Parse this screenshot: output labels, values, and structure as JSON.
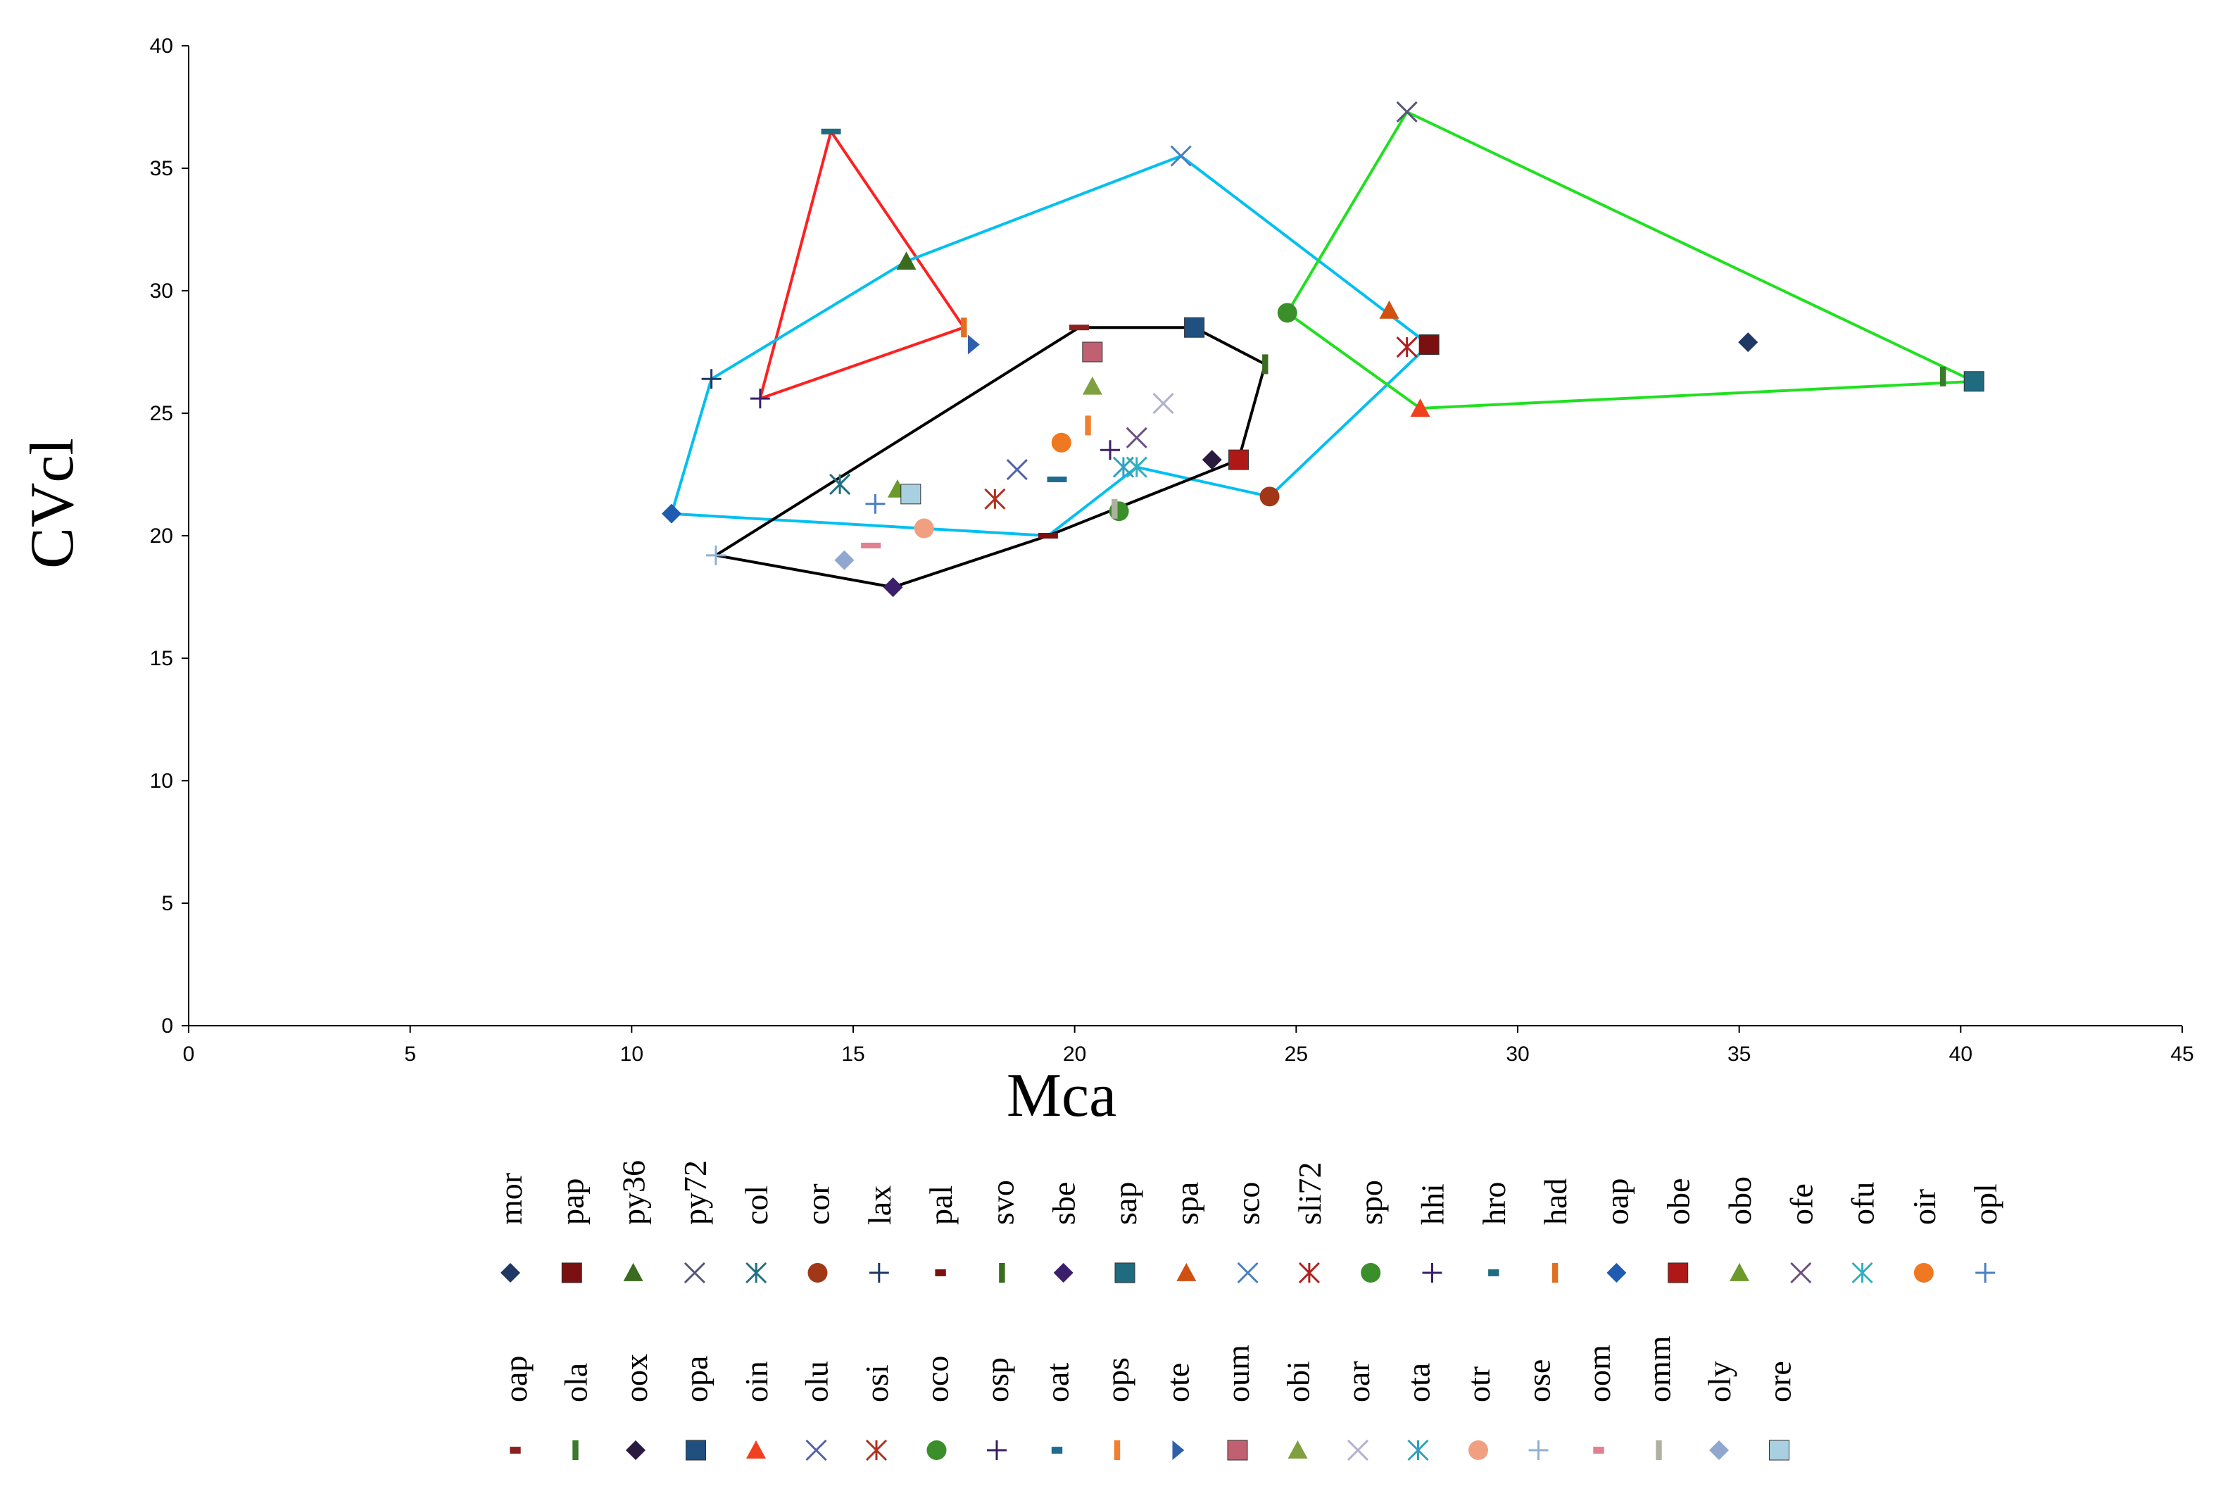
{
  "chart_data": {
    "type": "scatter",
    "title": "",
    "xlabel": "Mca",
    "ylabel": "CVcl",
    "xlim": [
      0,
      45
    ],
    "ylim": [
      0,
      40
    ],
    "xticks": [
      0,
      5,
      10,
      15,
      20,
      25,
      30,
      35,
      40,
      45
    ],
    "yticks": [
      0,
      5,
      10,
      15,
      20,
      25,
      30,
      35,
      40
    ],
    "grid": false,
    "legend_position": "bottom",
    "series": [
      {
        "name": "mor",
        "marker": "diamond",
        "color": "#1f3864",
        "x": 35.2,
        "y": 27.9
      },
      {
        "name": "pap",
        "marker": "square",
        "color": "#7b1010",
        "x": 28.0,
        "y": 27.8
      },
      {
        "name": "py36",
        "marker": "triangle",
        "color": "#3a6b1f",
        "x": 16.2,
        "y": 31.2
      },
      {
        "name": "py72",
        "marker": "x",
        "color": "#555577",
        "x": 27.5,
        "y": 37.3
      },
      {
        "name": "col",
        "marker": "star",
        "color": "#207080",
        "x": 14.7,
        "y": 22.1
      },
      {
        "name": "cor",
        "marker": "circle",
        "color": "#a03818",
        "x": 24.4,
        "y": 21.6
      },
      {
        "name": "lax",
        "marker": "plus",
        "color": "#1f3864",
        "x": 11.8,
        "y": 26.4
      },
      {
        "name": "pal",
        "marker": "dash",
        "color": "#7b1010",
        "x": 19.4,
        "y": 20.0
      },
      {
        "name": "svo",
        "marker": "bar",
        "color": "#3a6b1f",
        "x": 24.3,
        "y": 27.0
      },
      {
        "name": "sbe",
        "marker": "diamond",
        "color": "#3b1f6b",
        "x": 15.9,
        "y": 17.9
      },
      {
        "name": "sap",
        "marker": "square",
        "color": "#1f6b80",
        "x": 40.3,
        "y": 26.3
      },
      {
        "name": "spa",
        "marker": "triangle",
        "color": "#d05010",
        "x": 27.1,
        "y": 29.2
      },
      {
        "name": "sco",
        "marker": "x",
        "color": "#4a7fc0",
        "x": 22.4,
        "y": 35.5
      },
      {
        "name": "sli72",
        "marker": "star",
        "color": "#b02020",
        "x": 27.5,
        "y": 27.7
      },
      {
        "name": "spo",
        "marker": "circle",
        "color": "#3a8f2a",
        "x": 24.8,
        "y": 29.1
      },
      {
        "name": "hhi",
        "marker": "plus",
        "color": "#3b1f6b",
        "x": 12.9,
        "y": 25.6
      },
      {
        "name": "hro",
        "marker": "dash",
        "color": "#1f6b80",
        "x": 14.5,
        "y": 36.5
      },
      {
        "name": "had",
        "marker": "bar",
        "color": "#e07020",
        "x": 17.5,
        "y": 28.5
      },
      {
        "name": "oap",
        "marker": "diamond",
        "color": "#1f5bb0",
        "x": 10.9,
        "y": 20.9
      },
      {
        "name": "obe",
        "marker": "square",
        "color": "#b01818",
        "x": 23.7,
        "y": 23.1
      },
      {
        "name": "obo",
        "marker": "triangle",
        "color": "#6b9a2a",
        "x": 16.0,
        "y": 21.9
      },
      {
        "name": "ofe",
        "marker": "x",
        "color": "#6b5080",
        "x": 21.4,
        "y": 24.0
      },
      {
        "name": "ofu",
        "marker": "star",
        "color": "#2fb0c0",
        "x": 21.4,
        "y": 22.8
      },
      {
        "name": "oir",
        "marker": "circle",
        "color": "#f07820",
        "x": 19.7,
        "y": 23.8
      },
      {
        "name": "opl",
        "marker": "plus",
        "color": "#4a7fc0",
        "x": 15.5,
        "y": 21.3
      },
      {
        "name": "oap",
        "marker": "dash",
        "color": "#8b2020",
        "x": 20.1,
        "y": 28.5
      },
      {
        "name": "ola",
        "marker": "bar",
        "color": "#3a7a2a",
        "x": 39.6,
        "y": 26.5
      },
      {
        "name": "oox",
        "marker": "diamond",
        "color": "#2a1a40",
        "x": 23.1,
        "y": 23.1
      },
      {
        "name": "opa",
        "marker": "square",
        "color": "#1f5080",
        "x": 22.7,
        "y": 28.5
      },
      {
        "name": "oin",
        "marker": "triangle",
        "color": "#f04020",
        "x": 27.8,
        "y": 25.2
      },
      {
        "name": "olu",
        "marker": "x",
        "color": "#5060b0",
        "x": 18.7,
        "y": 22.7
      },
      {
        "name": "osi",
        "marker": "star",
        "color": "#b03020",
        "x": 18.2,
        "y": 21.5
      },
      {
        "name": "oco",
        "marker": "circle",
        "color": "#3a8f2a",
        "x": 21.0,
        "y": 21.0
      },
      {
        "name": "osp",
        "marker": "plus",
        "color": "#3b2060",
        "x": 20.8,
        "y": 23.5
      },
      {
        "name": "oat",
        "marker": "dash",
        "color": "#1f6b90",
        "x": 19.6,
        "y": 22.3
      },
      {
        "name": "ops",
        "marker": "bar",
        "color": "#f08030",
        "x": 20.3,
        "y": 24.5
      },
      {
        "name": "ote",
        "marker": "arrow",
        "color": "#2f5faa",
        "x": 17.7,
        "y": 27.8
      },
      {
        "name": "oum",
        "marker": "square",
        "color": "#c06070",
        "x": 20.4,
        "y": 27.5
      },
      {
        "name": "obi",
        "marker": "triangle",
        "color": "#80a040",
        "x": 20.4,
        "y": 26.1
      },
      {
        "name": "oar",
        "marker": "x",
        "color": "#b0b0d0",
        "x": 22.0,
        "y": 25.4
      },
      {
        "name": "ota",
        "marker": "star",
        "color": "#30a0c0",
        "x": 21.1,
        "y": 22.8
      },
      {
        "name": "otr",
        "marker": "circle",
        "color": "#f0a080",
        "x": 16.6,
        "y": 20.3
      },
      {
        "name": "ose",
        "marker": "plus",
        "color": "#90b0d0",
        "x": 11.9,
        "y": 19.2
      },
      {
        "name": "oom",
        "marker": "dash",
        "color": "#e08090",
        "x": 15.4,
        "y": 19.6
      },
      {
        "name": "omm",
        "marker": "bar",
        "color": "#b0b0a0",
        "x": 20.9,
        "y": 21.1
      },
      {
        "name": "oly",
        "marker": "diamond",
        "color": "#90a8d0",
        "x": 14.8,
        "y": 19.0
      },
      {
        "name": "ore",
        "marker": "square",
        "color": "#a8d0e0",
        "x": 16.3,
        "y": 21.7
      }
    ],
    "hulls": [
      {
        "name": "red",
        "color": "#ff2020",
        "points": [
          [
            12.9,
            25.6
          ],
          [
            14.5,
            36.5
          ],
          [
            17.5,
            28.5
          ]
        ]
      },
      {
        "name": "cyan",
        "color": "#00c0f0",
        "points": [
          [
            10.9,
            20.9
          ],
          [
            11.8,
            26.4
          ],
          [
            16.2,
            31.2
          ],
          [
            22.4,
            35.5
          ],
          [
            28.0,
            27.8
          ],
          [
            24.4,
            21.6
          ],
          [
            21.4,
            22.8
          ],
          [
            19.4,
            20.0
          ]
        ]
      },
      {
        "name": "black",
        "color": "#000000",
        "points": [
          [
            11.9,
            19.2
          ],
          [
            20.1,
            28.5
          ],
          [
            22.7,
            28.5
          ],
          [
            24.3,
            27.0
          ],
          [
            23.7,
            23.1
          ],
          [
            19.4,
            20.0
          ],
          [
            15.9,
            17.9
          ]
        ]
      },
      {
        "name": "green",
        "color": "#20e020",
        "points": [
          [
            24.8,
            29.1
          ],
          [
            27.5,
            37.3
          ],
          [
            40.3,
            26.3
          ],
          [
            27.8,
            25.2
          ]
        ]
      }
    ]
  }
}
